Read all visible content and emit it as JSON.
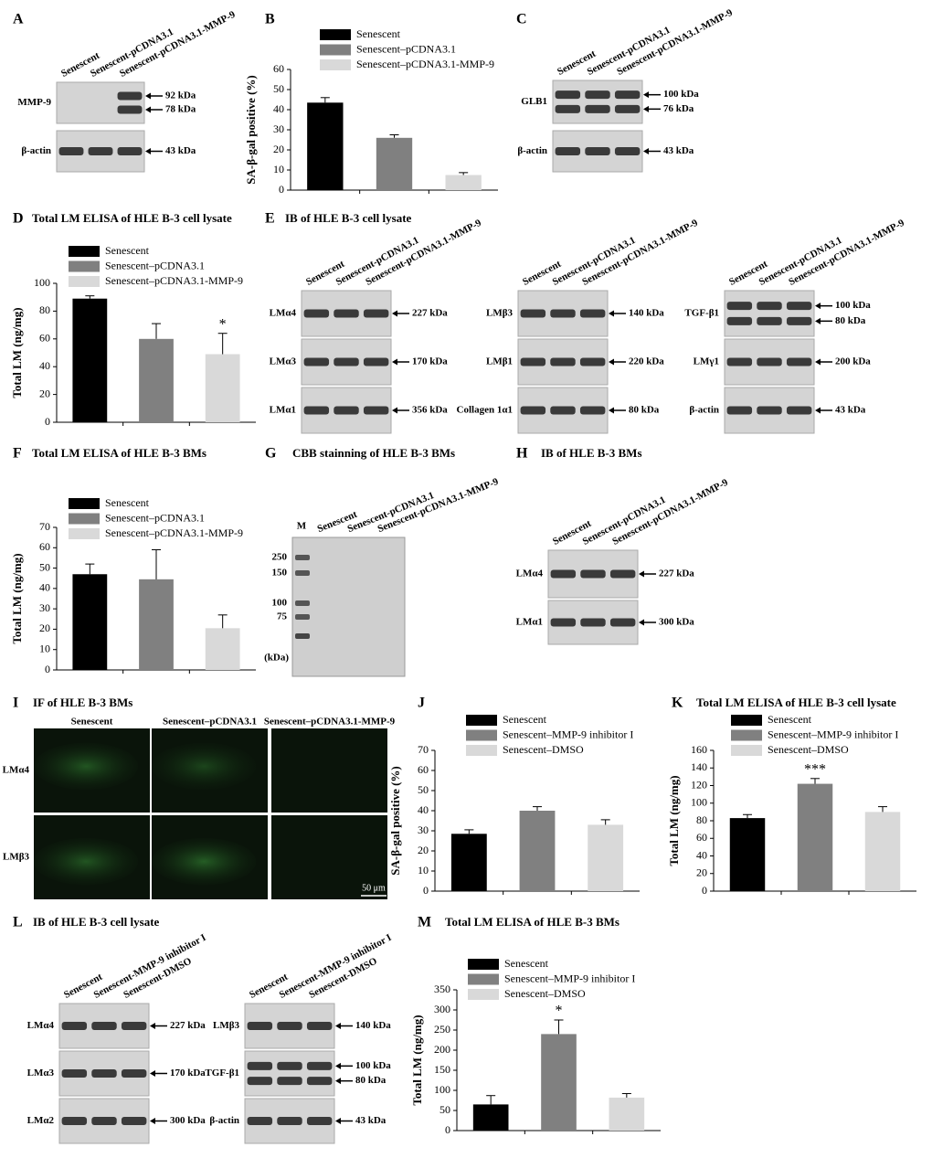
{
  "chart_data": [
    {
      "type": "bar",
      "letter": "B",
      "ylabel": "SA-β-gal  positive (%)",
      "categories": [
        null
      ],
      "series": [
        {
          "name": "Senescent",
          "color": "#000000",
          "values": [
            43.5
          ],
          "errors": [
            2.5
          ]
        },
        {
          "name": "Senescent–pCDNA3.1",
          "color": "#808080",
          "values": [
            26
          ],
          "errors": [
            1.5
          ]
        },
        {
          "name": "Senescent–pCDNA3.1-MMP-9",
          "color": "#d9d9d9",
          "values": [
            7.5
          ],
          "errors": [
            1.2
          ]
        }
      ],
      "ylim": [
        0,
        60
      ],
      "yticks": [
        0,
        10,
        20,
        30,
        40,
        50,
        60
      ]
    },
    {
      "type": "bar",
      "letter": "D",
      "title": "Total LM ELISA of HLE B-3 cell lysate",
      "ylabel": "Total LM (ng/mg)",
      "categories": [
        null
      ],
      "series": [
        {
          "name": "Senescent",
          "color": "#000000",
          "values": [
            89
          ],
          "errors": [
            2
          ]
        },
        {
          "name": "Senescent–pCDNA3.1",
          "color": "#808080",
          "values": [
            60
          ],
          "errors": [
            11
          ]
        },
        {
          "name": "Senescent–pCDNA3.1-MMP-9",
          "color": "#d9d9d9",
          "values": [
            49
          ],
          "errors": [
            15
          ],
          "annotation": "*"
        }
      ],
      "ylim": [
        0,
        100
      ],
      "yticks": [
        0,
        20,
        40,
        60,
        80,
        100
      ]
    },
    {
      "type": "bar",
      "letter": "F",
      "title": "Total LM ELISA of HLE B-3 BMs",
      "ylabel": "Total LM (ng/mg)",
      "categories": [
        null
      ],
      "series": [
        {
          "name": "Senescent",
          "color": "#000000",
          "values": [
            47
          ],
          "errors": [
            5
          ]
        },
        {
          "name": "Senescent–pCDNA3.1",
          "color": "#808080",
          "values": [
            44.5
          ],
          "errors": [
            14.5
          ]
        },
        {
          "name": "Senescent–pCDNA3.1-MMP-9",
          "color": "#d9d9d9",
          "values": [
            20.5
          ],
          "errors": [
            6.5
          ]
        }
      ],
      "ylim": [
        0,
        70
      ],
      "yticks": [
        0,
        10,
        20,
        30,
        40,
        50,
        60,
        70
      ]
    },
    {
      "type": "bar",
      "letter": "J",
      "ylabel": "SA-β-gal positive (%)",
      "categories": [
        null
      ],
      "series": [
        {
          "name": "Senescent",
          "color": "#000000",
          "values": [
            28.5
          ],
          "errors": [
            2
          ]
        },
        {
          "name": "Senescent–MMP-9 inhibitor I",
          "color": "#808080",
          "values": [
            40
          ],
          "errors": [
            2
          ]
        },
        {
          "name": "Senescent–DMSO",
          "color": "#d9d9d9",
          "values": [
            33
          ],
          "errors": [
            2.5
          ]
        }
      ],
      "ylim": [
        0,
        70
      ],
      "yticks": [
        0,
        10,
        20,
        30,
        40,
        50,
        60,
        70
      ]
    },
    {
      "type": "bar",
      "letter": "K",
      "title": "Total LM ELISA of HLE B-3 cell lysate",
      "ylabel": "Total LM (ng/mg)",
      "categories": [
        null
      ],
      "series": [
        {
          "name": "Senescent",
          "color": "#000000",
          "values": [
            83
          ],
          "errors": [
            4
          ]
        },
        {
          "name": "Senescent–MMP-9 inhibitor I",
          "color": "#808080",
          "values": [
            122
          ],
          "errors": [
            6
          ],
          "annotation": "***"
        },
        {
          "name": "Senescent–DMSO",
          "color": "#d9d9d9",
          "values": [
            90
          ],
          "errors": [
            6
          ]
        }
      ],
      "ylim": [
        0,
        160
      ],
      "yticks": [
        0,
        20,
        40,
        60,
        80,
        100,
        120,
        140,
        160
      ]
    },
    {
      "type": "bar",
      "letter": "M",
      "title": "Total LM ELISA of HLE B-3 BMs",
      "ylabel": "Total LM (ng/mg)",
      "categories": [
        null
      ],
      "series": [
        {
          "name": "Senescent",
          "color": "#000000",
          "values": [
            65
          ],
          "errors": [
            22
          ]
        },
        {
          "name": "Senescent–MMP-9 inhibitor I",
          "color": "#808080",
          "values": [
            240
          ],
          "errors": [
            35
          ],
          "annotation": "*"
        },
        {
          "name": "Senescent–DMSO",
          "color": "#d9d9d9",
          "values": [
            82
          ],
          "errors": [
            10
          ]
        }
      ],
      "ylim": [
        0,
        350
      ],
      "yticks": [
        0,
        50,
        100,
        150,
        200,
        250,
        300,
        350
      ]
    }
  ],
  "blots": [
    {
      "letter": "A",
      "groups": [
        {
          "lanes": [
            "Senescent",
            "Senescent-pCDNA3.1",
            "Senescent-pCDNA3.1-MMP-9"
          ],
          "rows": [
            {
              "label": "MMP-9",
              "markers": [
                "92 kDa",
                "78 kDa"
              ]
            },
            {
              "label": "β-actin",
              "markers": [
                "43 kDa"
              ]
            }
          ]
        }
      ]
    },
    {
      "letter": "C",
      "groups": [
        {
          "lanes": [
            "Senescent",
            "Senescent-pCDNA3.1",
            "Senescent-pCDNA3.1-MMP-9"
          ],
          "rows": [
            {
              "label": "GLB1",
              "markers": [
                "100 kDa",
                "76 kDa"
              ]
            },
            {
              "label": "β-actin",
              "markers": [
                "43 kDa"
              ]
            }
          ]
        }
      ]
    },
    {
      "letter": "E",
      "title": "IB of HLE B-3 cell lysate",
      "groups": [
        {
          "lanes": [
            "Senescent",
            "Senescent-pCDNA3.1",
            "Senescent-pCDNA3.1-MMP-9"
          ],
          "rows": [
            {
              "label": "LMα4",
              "markers": [
                "227 kDa"
              ]
            },
            {
              "label": "LMα3",
              "markers": [
                "170 kDa"
              ]
            },
            {
              "label": "LMα1",
              "markers": [
                "356 kDa"
              ]
            }
          ]
        },
        {
          "lanes": [
            "Senescent",
            "Senescent-pCDNA3.1",
            "Senescent-pCDNA3.1-MMP-9"
          ],
          "rows": [
            {
              "label": "LMβ3",
              "markers": [
                "140 kDa"
              ]
            },
            {
              "label": "LMβ1",
              "markers": [
                "220 kDa"
              ]
            },
            {
              "label": "Collagen 1α1",
              "markers": [
                "80 kDa"
              ]
            }
          ]
        },
        {
          "lanes": [
            "Senescent",
            "Senescent-pCDNA3.1",
            "Senescent-pCDNA3.1-MMP-9"
          ],
          "rows": [
            {
              "label": "TGF-β1",
              "markers": [
                "100 kDa",
                "80 kDa"
              ]
            },
            {
              "label": "LMγ1",
              "markers": [
                "200 kDa"
              ]
            },
            {
              "label": "β-actin",
              "markers": [
                "43 kDa"
              ]
            }
          ]
        }
      ]
    },
    {
      "letter": "G",
      "title": "CBB stainning of HLE B-3 BMs",
      "groups": [
        {
          "lanes": [
            "M",
            "Senescent",
            "Senescent-pCDNA3.1",
            "Senescent-pCDNA3.1-MMP-9"
          ],
          "ladder": [
            250,
            150,
            100,
            75
          ],
          "unit": "(kDa)"
        }
      ]
    },
    {
      "letter": "H",
      "title": "IB of HLE B-3 BMs",
      "groups": [
        {
          "lanes": [
            "Senescent",
            "Senescent-pCDNA3.1",
            "Senescent-pCDNA3.1-MMP-9"
          ],
          "rows": [
            {
              "label": "LMα4",
              "markers": [
                "227 kDa"
              ]
            },
            {
              "label": "LMα1",
              "markers": [
                "300 kDa"
              ]
            }
          ]
        }
      ]
    },
    {
      "letter": "L",
      "title": "IB of HLE B-3 cell lysate",
      "groups": [
        {
          "lanes": [
            "Senescent",
            "Senescent-MMP-9 inhibitor I",
            "Senescent-DMSO"
          ],
          "rows": [
            {
              "label": "LMα4",
              "markers": [
                "227 kDa"
              ]
            },
            {
              "label": "LMα3",
              "markers": [
                "170 kDa"
              ]
            },
            {
              "label": "LMα2",
              "markers": [
                "300 kDa"
              ]
            }
          ]
        },
        {
          "lanes": [
            "Senescent",
            "Senescent-MMP-9 inhibitor I",
            "Senescent-DMSO"
          ],
          "rows": [
            {
              "label": "LMβ3",
              "markers": [
                "140 kDa"
              ]
            },
            {
              "label": "TGF-β1",
              "markers": [
                "100 kDa",
                "80 kDa"
              ]
            },
            {
              "label": "β-actin",
              "markers": [
                "43 kDa"
              ]
            }
          ]
        }
      ]
    }
  ],
  "if_panel": {
    "letter": "I",
    "title": "IF of HLE B-3 BMs",
    "columns": [
      "Senescent",
      "Senescent–pCDNA3.1",
      "Senescent–pCDNA3.1-MMP-9"
    ],
    "rows": [
      "LMα4",
      "LMβ3"
    ],
    "scale_bar": "50 μm"
  }
}
